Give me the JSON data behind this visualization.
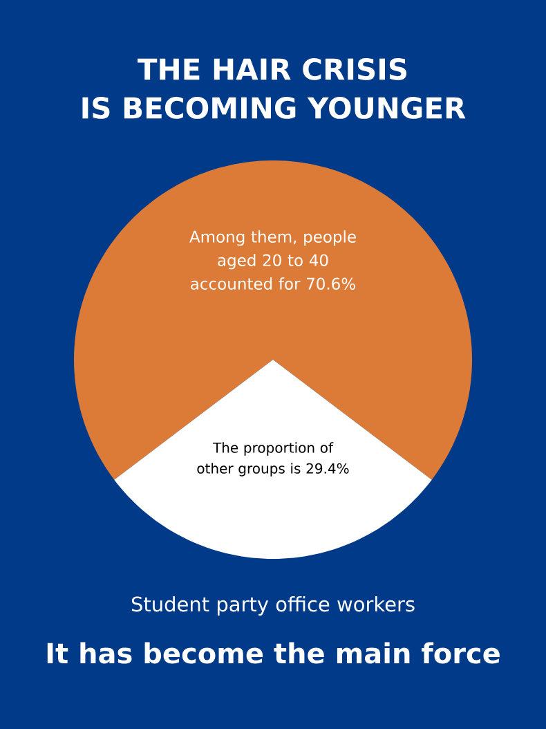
{
  "chart_data": {
    "type": "pie",
    "title": "THE HAIR CRISIS",
    "subtitle": "IS BECOMING YOUNGER",
    "categories": [
      "Among them, people aged 20 to 40 accounted for 70.6%",
      "The proportion of other groups is 29.4%"
    ],
    "values": [
      70.6,
      29.4
    ],
    "colors": [
      "#dc7a38",
      "#ffffff"
    ],
    "annotations": [
      "Student party office workers",
      "It has become the main force"
    ]
  }
}
